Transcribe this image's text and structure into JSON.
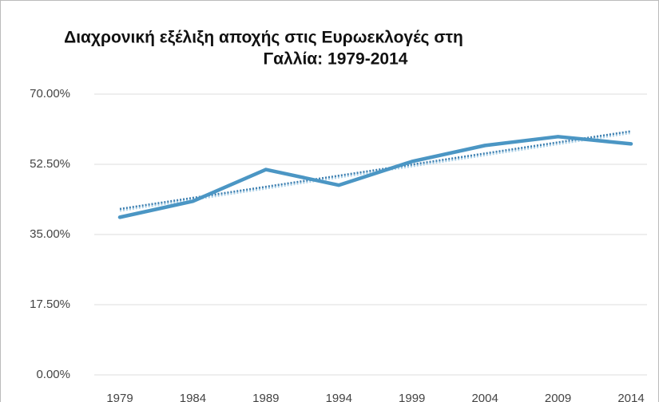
{
  "chart_data": {
    "type": "line",
    "title_lines": [
      "Διαχρονική εξέλιξη αποχής στις Ευρωεκλογές στη",
      "Γαλλία: 1979-2014"
    ],
    "categories": [
      "1979",
      "1984",
      "1989",
      "1994",
      "1999",
      "2004",
      "2009",
      "2014"
    ],
    "values": [
      39.3,
      43.3,
      51.2,
      47.3,
      53.2,
      57.2,
      59.4,
      57.6
    ],
    "color": "#4b96c4",
    "trendline": true,
    "ylim": [
      0,
      70
    ],
    "yticks": [
      {
        "value": 0,
        "label": "0.00%"
      },
      {
        "value": 17.5,
        "label": "17.50%"
      },
      {
        "value": 35,
        "label": "35.00%"
      },
      {
        "value": 52.5,
        "label": "52.50%"
      },
      {
        "value": 70,
        "label": "70.00%"
      }
    ],
    "grid": true
  }
}
